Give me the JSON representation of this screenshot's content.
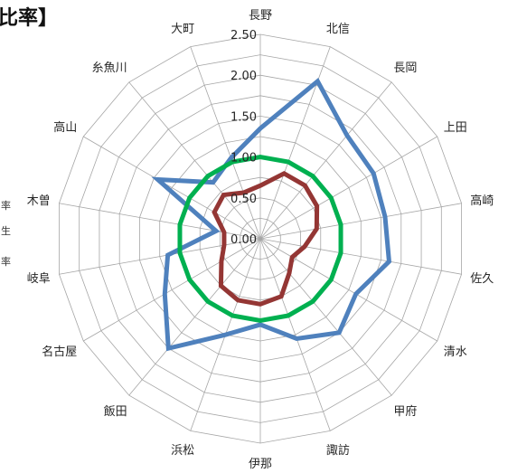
{
  "chart_data": {
    "type": "radar",
    "title_fragment": "比率】",
    "left_edge_fragments": [
      "率",
      "生",
      "率"
    ],
    "categories": [
      "長野",
      "北信",
      "長岡",
      "上田",
      "高崎",
      "佐久",
      "清水",
      "甲府",
      "諏訪",
      "伊那",
      "浜松",
      "飯田",
      "名古屋",
      "岐阜",
      "木曽",
      "高山",
      "糸魚川",
      "大町"
    ],
    "radial_ticks": [
      "0.00",
      "0.50",
      "1.00",
      "1.50",
      "2.00",
      "2.50"
    ],
    "rmax": 2.5,
    "grid": true,
    "series": [
      {
        "color": "#4f81bd",
        "values": [
          1.35,
          2.05,
          1.65,
          1.6,
          1.55,
          1.6,
          1.35,
          1.5,
          1.3,
          1.05,
          1.25,
          1.75,
          1.35,
          1.15,
          0.55,
          1.45,
          0.9,
          1.05
        ]
      },
      {
        "color": "#943634",
        "values": [
          0.65,
          0.85,
          0.85,
          0.8,
          0.7,
          0.55,
          0.45,
          0.55,
          0.75,
          0.8,
          0.8,
          0.75,
          0.55,
          0.45,
          0.45,
          0.65,
          0.7,
          0.6
        ]
      },
      {
        "color": "#00b050",
        "values": [
          1.0,
          1.0,
          1.0,
          1.0,
          1.0,
          1.0,
          1.0,
          1.0,
          1.0,
          1.0,
          1.0,
          1.0,
          1.0,
          1.0,
          1.0,
          1.0,
          1.0,
          1.0
        ]
      }
    ]
  }
}
